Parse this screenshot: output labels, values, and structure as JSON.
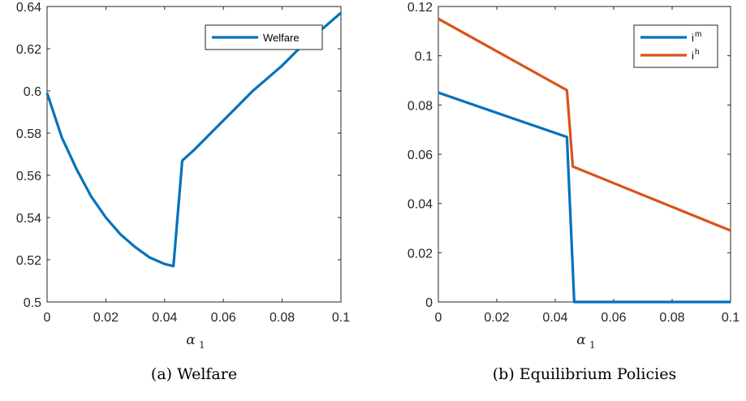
{
  "chart_data": [
    {
      "type": "line",
      "caption": "(a) Welfare",
      "xlabel": "α",
      "xlabel_sub": "1",
      "xlim": [
        0,
        0.1
      ],
      "ylim": [
        0.5,
        0.64
      ],
      "xticks": [
        0,
        0.02,
        0.04,
        0.06,
        0.08,
        0.1
      ],
      "xtick_labels": [
        "0",
        "0.02",
        "0.04",
        "0.06",
        "0.08",
        "0.1"
      ],
      "yticks": [
        0.5,
        0.52,
        0.54,
        0.56,
        0.58,
        0.6,
        0.62,
        0.64
      ],
      "ytick_labels": [
        "0.5",
        "0.52",
        "0.54",
        "0.56",
        "0.58",
        "0.6",
        "0.62",
        "0.64"
      ],
      "legend_position": "top-right",
      "series": [
        {
          "name": "Welfare",
          "color": "#0072BD",
          "x": [
            0,
            0.005,
            0.01,
            0.015,
            0.02,
            0.025,
            0.03,
            0.035,
            0.04,
            0.043,
            0.046,
            0.05,
            0.055,
            0.06,
            0.065,
            0.07,
            0.075,
            0.08,
            0.085,
            0.09,
            0.095,
            0.1
          ],
          "y": [
            0.599,
            0.578,
            0.563,
            0.55,
            0.54,
            0.532,
            0.526,
            0.521,
            0.518,
            0.517,
            0.567,
            0.572,
            0.579,
            0.586,
            0.593,
            0.6,
            0.606,
            0.612,
            0.619,
            0.625,
            0.631,
            0.637
          ]
        }
      ]
    },
    {
      "type": "line",
      "caption": "(b) Equilibrium Policies",
      "xlabel": "α",
      "xlabel_sub": "1",
      "xlim": [
        0,
        0.1
      ],
      "ylim": [
        0,
        0.12
      ],
      "xticks": [
        0,
        0.02,
        0.04,
        0.06,
        0.08,
        0.1
      ],
      "xtick_labels": [
        "0",
        "0.02",
        "0.04",
        "0.06",
        "0.08",
        "0.1"
      ],
      "yticks": [
        0,
        0.02,
        0.04,
        0.06,
        0.08,
        0.1,
        0.12
      ],
      "ytick_labels": [
        "0",
        "0.02",
        "0.04",
        "0.06",
        "0.08",
        "0.1",
        "0.12"
      ],
      "legend_position": "top-right",
      "series": [
        {
          "name": "i",
          "name_sup": "m",
          "color": "#0072BD",
          "x": [
            0,
            0.044,
            0.0465,
            0.1
          ],
          "y": [
            0.085,
            0.067,
            0,
            0
          ]
        },
        {
          "name": "i",
          "name_sup": "h",
          "color": "#D95319",
          "x": [
            0,
            0.044,
            0.046,
            0.1
          ],
          "y": [
            0.115,
            0.086,
            0.055,
            0.029
          ]
        }
      ]
    }
  ]
}
